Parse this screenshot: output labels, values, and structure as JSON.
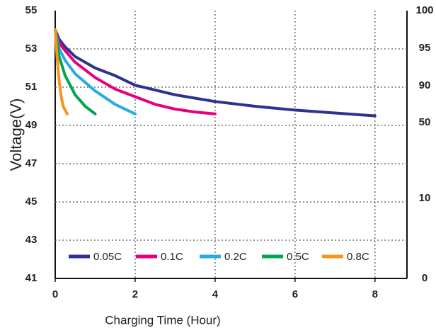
{
  "chart_data": {
    "type": "line",
    "x_label": "Charging Time (Hour)",
    "y_label": "Voltage(V)",
    "xlim": [
      0,
      8.8
    ],
    "xticks": [
      0,
      2,
      4,
      6,
      8
    ],
    "ylim": [
      41,
      55
    ],
    "yticks": [
      41,
      43,
      45,
      47,
      49,
      51,
      53,
      55
    ],
    "y2ticks": [
      100,
      95,
      90,
      50,
      10,
      0
    ],
    "grid": true,
    "legend": "bottom-left",
    "series": [
      {
        "name": "0.05C",
        "color": "#2e3192",
        "x": [
          0,
          0.1,
          0.25,
          0.5,
          1,
          1.5,
          2,
          3,
          4,
          5,
          6,
          7,
          8
        ],
        "values": [
          54.0,
          53.5,
          53.1,
          52.6,
          52.0,
          51.6,
          51.1,
          50.6,
          50.25,
          50.0,
          49.8,
          49.65,
          49.5
        ]
      },
      {
        "name": "0.1C",
        "color": "#e6007e",
        "x": [
          0,
          0.1,
          0.25,
          0.5,
          1,
          1.5,
          2,
          2.5,
          3,
          3.5,
          4
        ],
        "values": [
          54.0,
          53.3,
          52.9,
          52.3,
          51.5,
          50.9,
          50.5,
          50.1,
          49.85,
          49.7,
          49.6
        ]
      },
      {
        "name": "0.2C",
        "color": "#29abe2",
        "x": [
          0,
          0.1,
          0.25,
          0.5,
          1,
          1.5,
          2
        ],
        "values": [
          54.0,
          53.0,
          52.4,
          51.7,
          50.8,
          50.1,
          49.6
        ]
      },
      {
        "name": "0.5C",
        "color": "#00a651",
        "x": [
          0,
          0.1,
          0.25,
          0.5,
          0.75,
          1
        ],
        "values": [
          54.0,
          52.6,
          51.6,
          50.6,
          50.0,
          49.6
        ]
      },
      {
        "name": "0.8C",
        "color": "#f7941d",
        "x": [
          0,
          0.05,
          0.1,
          0.15,
          0.2,
          0.3
        ],
        "values": [
          54.0,
          52.5,
          51.3,
          50.5,
          50.0,
          49.6
        ]
      }
    ]
  }
}
